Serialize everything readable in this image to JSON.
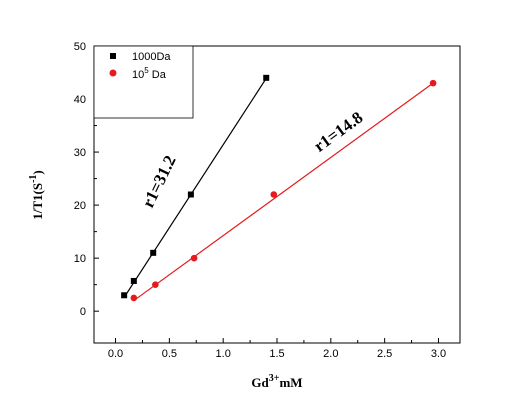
{
  "chart_data": {
    "type": "scatter",
    "xlabel": {
      "base": "Gd",
      "sup": "3+",
      "rest": "mM"
    },
    "ylabel": {
      "pre": "1/T1(S",
      "sup": "-1",
      "post": ")"
    },
    "xlim": [
      -0.2,
      3.2
    ],
    "ylim": [
      -6,
      50
    ],
    "xticks": [
      0.0,
      0.5,
      1.0,
      1.5,
      2.0,
      2.5,
      3.0
    ],
    "xtick_labels": [
      "0.0",
      "0.5",
      "1.0",
      "1.5",
      "2.0",
      "2.5",
      "3.0"
    ],
    "yticks": [
      0,
      10,
      20,
      30,
      40,
      50
    ],
    "ytick_labels": [
      "0",
      "10",
      "20",
      "30",
      "40",
      "50"
    ],
    "legend_position": "top-left",
    "series": [
      {
        "name": "1000Da",
        "marker": "square",
        "color": "#000000",
        "x": [
          0.08,
          0.17,
          0.35,
          0.7,
          1.4
        ],
        "y": [
          3.0,
          5.7,
          11.0,
          22.0,
          44.0
        ],
        "fit": [
          [
            0.08,
            2.6
          ],
          [
            1.4,
            43.9
          ]
        ]
      },
      {
        "name": "10",
        "name_sup": "5",
        "name_suffix": " Da",
        "marker": "circle",
        "color": "#e41a1c",
        "x": [
          0.17,
          0.37,
          0.73,
          1.47,
          2.95
        ],
        "y": [
          2.5,
          5.0,
          10.0,
          22.0,
          43.0
        ],
        "fit": [
          [
            0.17,
            2.0
          ],
          [
            2.95,
            43.0
          ]
        ]
      }
    ],
    "annotations": [
      {
        "text": "r1=31.2",
        "rotation": -64,
        "anchor_x": 0.45,
        "anchor_y": 24
      },
      {
        "text": "r1=14.8",
        "rotation": -36,
        "anchor_x": 2.1,
        "anchor_y": 33
      }
    ]
  }
}
